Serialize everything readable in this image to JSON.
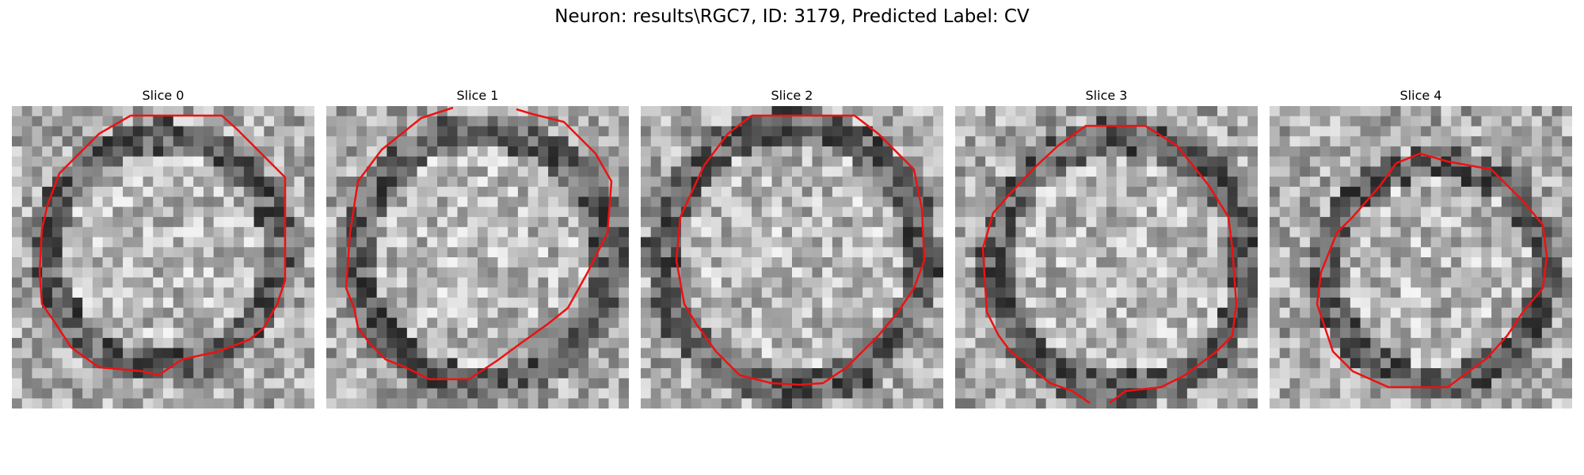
{
  "figure": {
    "title": "Neuron: results\\RGC7, ID: 3179, Predicted Label: CV"
  },
  "panels": [
    {
      "title": "Slice 0"
    },
    {
      "title": "Slice 1"
    },
    {
      "title": "Slice 2"
    },
    {
      "title": "Slice 3"
    },
    {
      "title": "Slice 4"
    }
  ],
  "colors": {
    "contour": "#ee1111",
    "background": "#ffffff"
  }
}
